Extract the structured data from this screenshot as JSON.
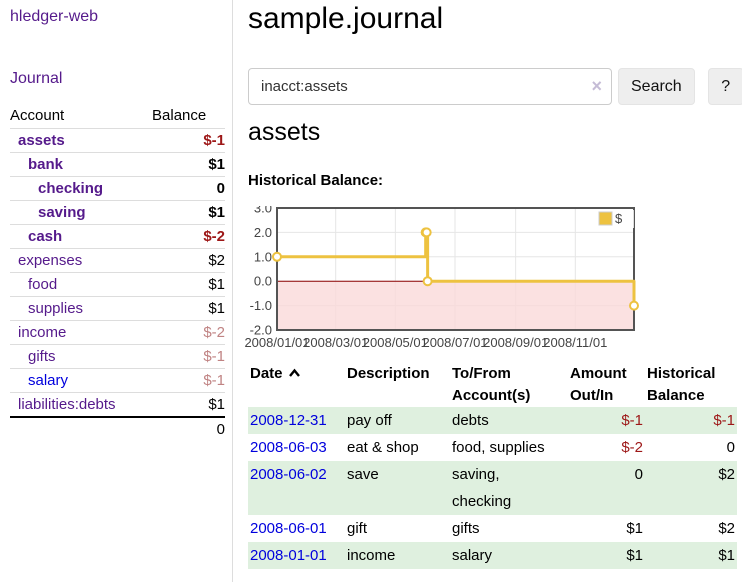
{
  "sidebar": {
    "brand": "hledger-web",
    "journal_label": "Journal",
    "accounts_header": {
      "account": "Account",
      "balance": "Balance"
    },
    "accounts": [
      {
        "name": "assets",
        "level": 0,
        "matched": true,
        "link_color": "purple",
        "balance": "$-1",
        "balance_tone": "neg"
      },
      {
        "name": "bank",
        "level": 1,
        "matched": true,
        "link_color": "purple",
        "balance": "$1",
        "balance_tone": "plain"
      },
      {
        "name": "checking",
        "level": 2,
        "matched": true,
        "link_color": "purple",
        "balance": "0",
        "balance_tone": "plain"
      },
      {
        "name": "saving",
        "level": 2,
        "matched": true,
        "link_color": "purple",
        "balance": "$1",
        "balance_tone": "plain"
      },
      {
        "name": "cash",
        "level": 1,
        "matched": true,
        "link_color": "purple",
        "balance": "$-2",
        "balance_tone": "neg"
      },
      {
        "name": "expenses",
        "level": 0,
        "matched": false,
        "link_color": "purple",
        "balance": "$2",
        "balance_tone": "plain"
      },
      {
        "name": "food",
        "level": 1,
        "matched": false,
        "link_color": "purple",
        "balance": "$1",
        "balance_tone": "plain"
      },
      {
        "name": "supplies",
        "level": 1,
        "matched": false,
        "link_color": "purple",
        "balance": "$1",
        "balance_tone": "plain"
      },
      {
        "name": "income",
        "level": 0,
        "matched": false,
        "link_color": "purple",
        "balance": "$-2",
        "balance_tone": "neg-dim"
      },
      {
        "name": "gifts",
        "level": 1,
        "matched": false,
        "link_color": "purple",
        "balance": "$-1",
        "balance_tone": "neg-dim"
      },
      {
        "name": "salary",
        "level": 1,
        "matched": false,
        "link_color": "blue",
        "balance": "$-1",
        "balance_tone": "neg-dim"
      },
      {
        "name": "liabilities:debts",
        "level": 0,
        "matched": false,
        "link_color": "purple",
        "balance": "$1",
        "balance_tone": "plain"
      }
    ],
    "total": "0"
  },
  "main": {
    "title": "sample.journal",
    "search": {
      "value": "inacct:assets",
      "clear_icon": "×",
      "button_label": "Search",
      "help_label": "?"
    },
    "account_heading": "assets"
  },
  "chart_data": {
    "type": "line",
    "step": true,
    "title": "Historical Balance:",
    "x_min": "2008-01-01",
    "x_max": "2008-12-31",
    "ylim": [
      -2,
      3
    ],
    "y_ticks": [
      3,
      2,
      1,
      0,
      -1,
      -2
    ],
    "x_ticks": [
      {
        "label": "2008/01/01",
        "date": "2008-01-01"
      },
      {
        "label": "2008/03/01",
        "date": "2008-03-01"
      },
      {
        "label": "2008/05/01",
        "date": "2008-05-01"
      },
      {
        "label": "2008/07/01",
        "date": "2008-07-01"
      },
      {
        "label": "2008/09/01",
        "date": "2008-09-01"
      },
      {
        "label": "2008/11/01",
        "date": "2008-11-01"
      }
    ],
    "series": [
      {
        "name": "$",
        "color": "#edc240",
        "points": [
          [
            "2008-01-01",
            1
          ],
          [
            "2008-06-01",
            2
          ],
          [
            "2008-06-02",
            2
          ],
          [
            "2008-06-03",
            0
          ],
          [
            "2008-12-31",
            -1
          ]
        ]
      }
    ],
    "colors": {
      "grid": "#e6e6e6",
      "border": "#545454",
      "negative_region": "#fadada",
      "zero_line": "#8b0000",
      "tick_text": "#444444"
    },
    "legend_position": "top-right",
    "grid": true
  },
  "register": {
    "headers": [
      {
        "lines": [
          "Date"
        ],
        "align": "left",
        "sortable": true
      },
      {
        "lines": [
          "Description"
        ],
        "align": "left"
      },
      {
        "lines": [
          "To/From",
          "Account(s)"
        ],
        "align": "left"
      },
      {
        "lines": [
          "Amount",
          "Out/In"
        ],
        "align": "right"
      },
      {
        "lines": [
          "Historical",
          "Balance"
        ],
        "align": "right"
      }
    ],
    "rows": [
      {
        "date": "2008-12-31",
        "description": "pay off",
        "accounts": [
          "debts"
        ],
        "amount": "$-1",
        "amount_tone": "neg",
        "balance": "$-1",
        "balance_tone": "neg"
      },
      {
        "date": "2008-06-03",
        "description": "eat & shop",
        "accounts": [
          "food, supplies"
        ],
        "amount": "$-2",
        "amount_tone": "neg",
        "balance": "0",
        "balance_tone": "plain"
      },
      {
        "date": "2008-06-02",
        "description": "save",
        "accounts": [
          "saving,",
          "checking"
        ],
        "amount": "0",
        "amount_tone": "plain",
        "balance": "$2",
        "balance_tone": "plain"
      },
      {
        "date": "2008-06-01",
        "description": "gift",
        "accounts": [
          "gifts"
        ],
        "amount": "$1",
        "amount_tone": "plain",
        "balance": "$2",
        "balance_tone": "plain"
      },
      {
        "date": "2008-01-01",
        "description": "income",
        "accounts": [
          "salary"
        ],
        "amount": "$1",
        "amount_tone": "plain",
        "balance": "$1",
        "balance_tone": "plain"
      }
    ]
  },
  "colors": {
    "link_purple": "#551a8b",
    "link_blue": "#0000dd",
    "negative_strong": "#9d1717",
    "negative_dim": "#c08383",
    "row_green": "#dff0df",
    "accent_gold": "#edc240"
  }
}
